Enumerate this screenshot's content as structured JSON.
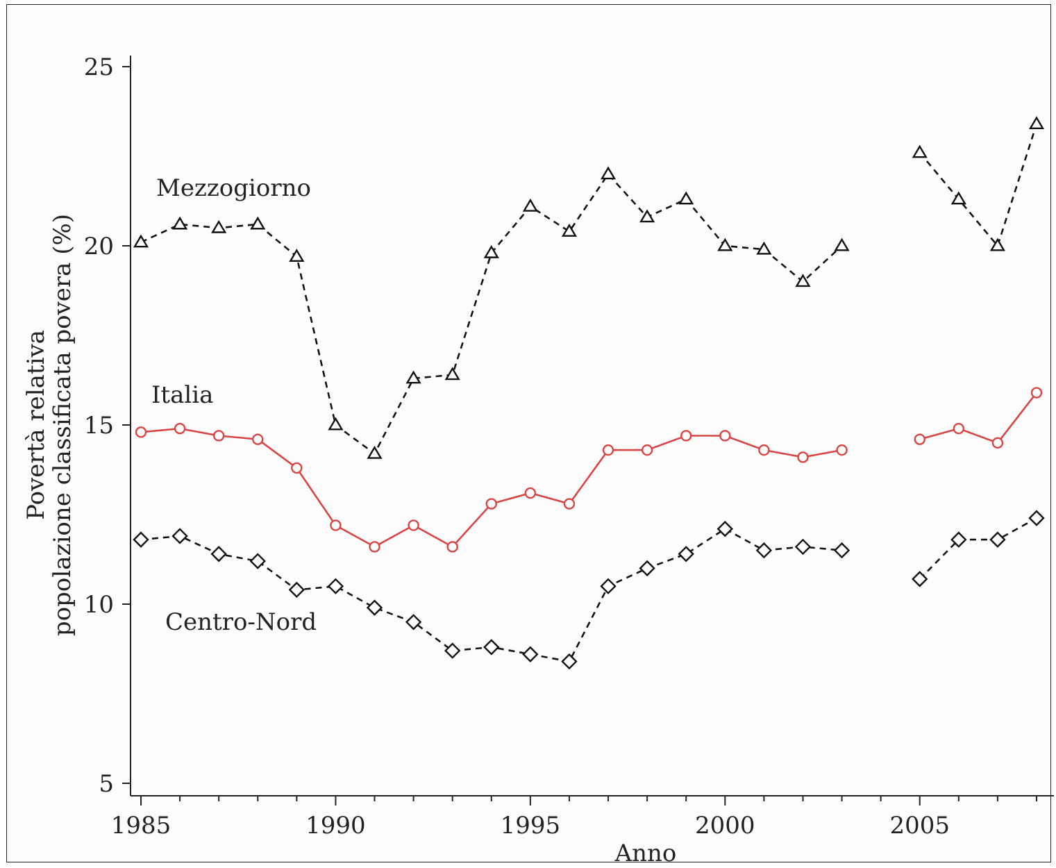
{
  "chart_data": {
    "type": "line",
    "xlabel": "Anno",
    "ylabel_lines": [
      "Povertà relativa",
      "popolazione classificata povera (%)"
    ],
    "xlim": [
      1985,
      2008
    ],
    "ylim": [
      5,
      25
    ],
    "x_ticks": [
      1985,
      1990,
      1995,
      2000,
      2005
    ],
    "y_ticks": [
      5,
      10,
      15,
      20,
      25
    ],
    "grid": false,
    "legend": "none",
    "series": [
      {
        "name": "Mezzogiorno",
        "marker": "triangle",
        "line_style": "dashed",
        "color": "#111111",
        "points": [
          [
            1985,
            20.1
          ],
          [
            1986,
            20.6
          ],
          [
            1987,
            20.5
          ],
          [
            1988,
            20.6
          ],
          [
            1989,
            19.7
          ],
          [
            1990,
            15.0
          ],
          [
            1991,
            14.2
          ],
          [
            1992,
            16.3
          ],
          [
            1993,
            16.4
          ],
          [
            1994,
            19.8
          ],
          [
            1995,
            21.1
          ],
          [
            1996,
            20.4
          ],
          [
            1997,
            22.0
          ],
          [
            1998,
            20.8
          ],
          [
            1999,
            21.3
          ],
          [
            2000,
            20.0
          ],
          [
            2001,
            19.9
          ],
          [
            2002,
            19.0
          ],
          [
            2003,
            20.0
          ],
          null,
          [
            2005,
            22.6
          ],
          [
            2006,
            21.3
          ],
          [
            2007,
            20.0
          ],
          [
            2008,
            23.4
          ]
        ]
      },
      {
        "name": "Italia",
        "marker": "circle",
        "line_style": "solid",
        "color": "#d84545",
        "points": [
          [
            1985,
            14.8
          ],
          [
            1986,
            14.9
          ],
          [
            1987,
            14.7
          ],
          [
            1988,
            14.6
          ],
          [
            1989,
            13.8
          ],
          [
            1990,
            12.2
          ],
          [
            1991,
            11.6
          ],
          [
            1992,
            12.2
          ],
          [
            1993,
            11.6
          ],
          [
            1994,
            12.8
          ],
          [
            1995,
            13.1
          ],
          [
            1996,
            12.8
          ],
          [
            1997,
            14.3
          ],
          [
            1998,
            14.3
          ],
          [
            1999,
            14.7
          ],
          [
            2000,
            14.7
          ],
          [
            2001,
            14.3
          ],
          [
            2002,
            14.1
          ],
          [
            2003,
            14.3
          ],
          null,
          [
            2005,
            14.6
          ],
          [
            2006,
            14.9
          ],
          [
            2007,
            14.5
          ],
          [
            2008,
            15.9
          ]
        ]
      },
      {
        "name": "Centro-Nord",
        "marker": "diamond",
        "line_style": "dashed",
        "color": "#111111",
        "points": [
          [
            1985,
            11.8
          ],
          [
            1986,
            11.9
          ],
          [
            1987,
            11.4
          ],
          [
            1988,
            11.2
          ],
          [
            1989,
            10.4
          ],
          [
            1990,
            10.5
          ],
          [
            1991,
            9.9
          ],
          [
            1992,
            9.5
          ],
          [
            1993,
            8.7
          ],
          [
            1994,
            8.8
          ],
          [
            1995,
            8.6
          ],
          [
            1996,
            8.4
          ],
          [
            1997,
            10.5
          ],
          [
            1998,
            11.0
          ],
          [
            1999,
            11.4
          ],
          [
            2000,
            12.1
          ],
          [
            2001,
            11.5
          ],
          [
            2002,
            11.6
          ],
          [
            2003,
            11.5
          ],
          null,
          [
            2005,
            10.7
          ],
          [
            2006,
            11.8
          ],
          [
            2007,
            11.8
          ],
          [
            2008,
            12.4
          ]
        ]
      }
    ]
  }
}
